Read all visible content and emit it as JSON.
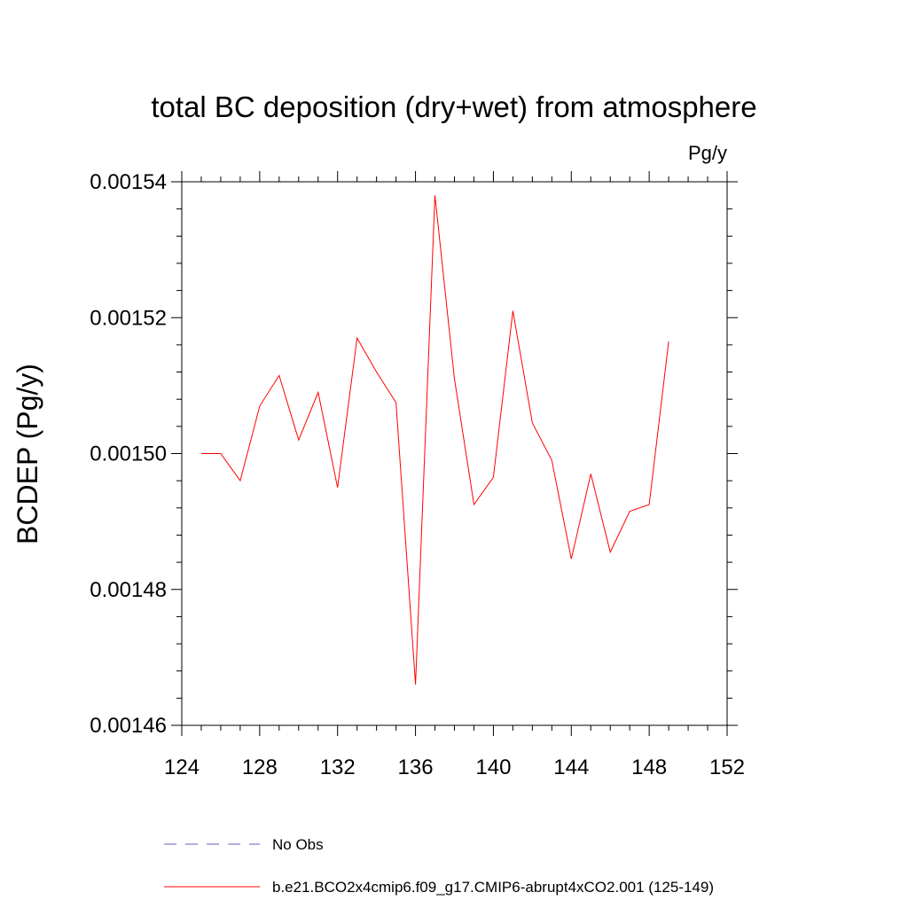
{
  "chart_data": {
    "type": "line",
    "title": "total BC deposition (dry+wet) from atmosphere",
    "units": "Pg/y",
    "ylabel": "BCDEP  (Pg/y)",
    "xlabel": "",
    "xlim": [
      124,
      152
    ],
    "ylim": [
      0.00146,
      0.00154
    ],
    "x_ticks": [
      124,
      128,
      132,
      136,
      140,
      144,
      148,
      152
    ],
    "x_tick_labels": [
      "124",
      "128",
      "132",
      "136",
      "140",
      "144",
      "148",
      "152"
    ],
    "y_ticks": [
      0.00146,
      0.00148,
      0.0015,
      0.00152,
      0.00154
    ],
    "y_tick_labels": [
      "0.00146",
      "0.00148",
      "0.00150",
      "0.00152",
      "0.00154"
    ],
    "series": [
      {
        "name": "No Obs",
        "color": "#6060c8",
        "style": "dashed",
        "x": [],
        "y": []
      },
      {
        "name": "b.e21.BCO2x4cmip6.f09_g17.CMIP6-abrupt4xCO2.001 (125-149)",
        "color": "#ff0000",
        "style": "solid",
        "x": [
          125,
          126,
          127,
          128,
          129,
          130,
          131,
          132,
          133,
          134,
          135,
          136,
          137,
          138,
          139,
          140,
          141,
          142,
          143,
          144,
          145,
          146,
          147,
          148,
          149
        ],
        "y": [
          0.0015,
          0.0015,
          0.001496,
          0.001507,
          0.0015115,
          0.001502,
          0.001509,
          0.001495,
          0.001517,
          0.001512,
          0.0015075,
          0.001466,
          0.001538,
          0.001511,
          0.0014925,
          0.0014965,
          0.001521,
          0.0015045,
          0.001499,
          0.0014845,
          0.001497,
          0.0014855,
          0.0014915,
          0.0014925,
          0.0015165
        ]
      }
    ],
    "legend_position": "bottom"
  }
}
